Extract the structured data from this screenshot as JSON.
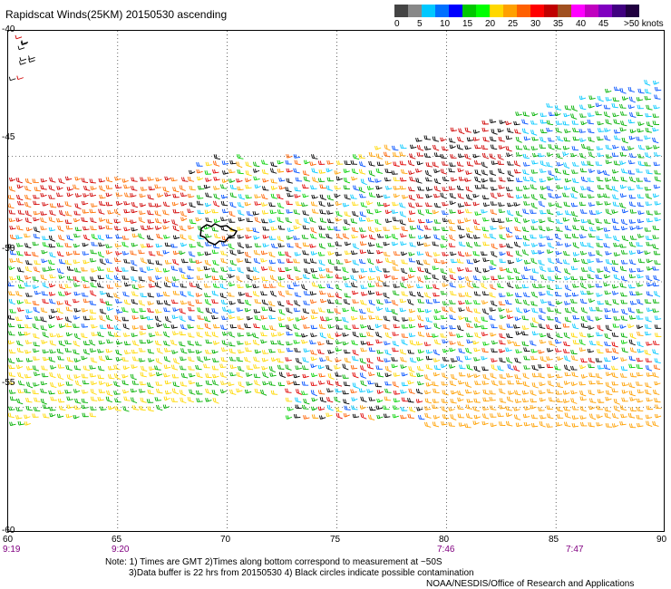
{
  "title": "Rapidscat Winds(25KM) 20150530 ascending",
  "scale": {
    "colors": [
      "#444444",
      "#888888",
      "#00c8ff",
      "#0070ff",
      "#0000ff",
      "#00c800",
      "#00ff00",
      "#ffd800",
      "#ffa000",
      "#ff6000",
      "#ff0000",
      "#c00000",
      "#a05020",
      "#ff00ff",
      "#c000c0",
      "#8000c0",
      "#400080",
      "#200040"
    ],
    "labels": [
      "0",
      "5",
      "10",
      "15",
      "20",
      "25",
      "30",
      "35",
      "40",
      "45"
    ],
    "unit": ">50 knots"
  },
  "lat_labels": [
    "-40",
    "-45",
    "-50",
    "-55",
    "-60"
  ],
  "lon_labels": [
    "60",
    "65",
    "70",
    "75",
    "80",
    "85",
    "90"
  ],
  "time_labels": [
    "9:19",
    "9:20",
    "7:46",
    "7:47"
  ],
  "notes": [
    "Note: 1) Times are GMT 2)Times along bottom correspond to measurement at ~50S",
    "3)Data buffer is 22 hrs from 20150530 4) Black circles indicate possible contamination"
  ],
  "credit": "NOAA/NESDIS/Office of Research and Applications",
  "chart_data": {
    "type": "map",
    "map_kind": "wind barb swath",
    "lon_range": [
      60,
      90
    ],
    "lat_range": [
      -60,
      -40
    ],
    "grid": true,
    "colorbar": {
      "unit": "knots",
      "range": [
        0,
        50
      ]
    }
  }
}
